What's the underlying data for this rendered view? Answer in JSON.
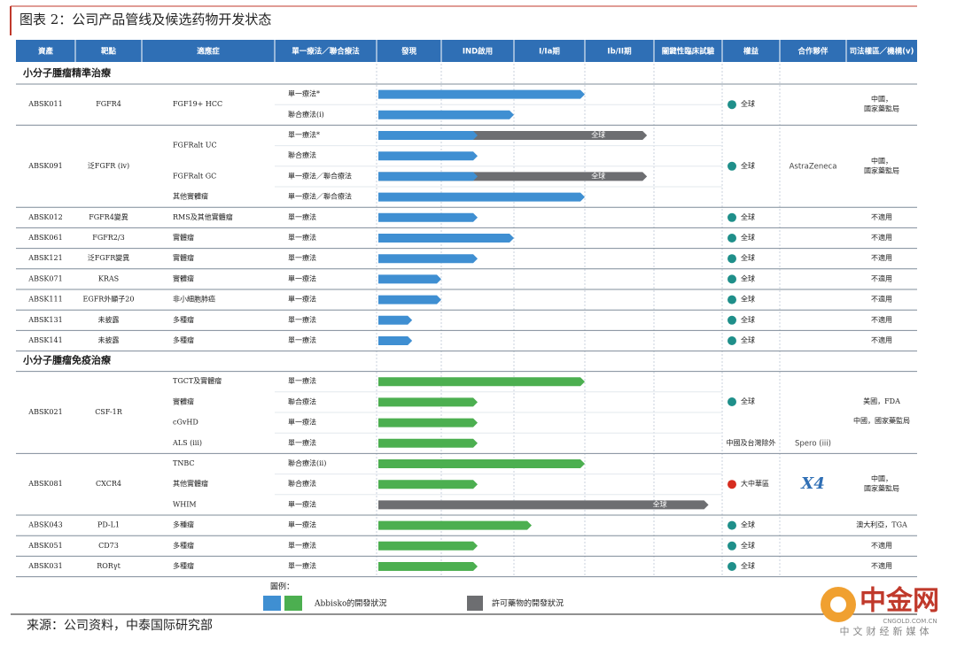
{
  "title": "图表 2：公司产品管线及候选药物开发状态",
  "header": [
    "資產",
    "靶點",
    "適應症",
    "單一療法／聯合療法",
    "發現",
    "IND啟用",
    "I/Ia期",
    "Ib/II期",
    "關鍵性臨床試驗",
    "權益",
    "合作夥伴",
    "司法權區／機構(v)"
  ],
  "stage_colors": {
    "own_precision": "#3f8fd2",
    "own_immuno": "#4caf50",
    "licensed": "#6d6e71"
  },
  "sections": [
    {
      "title": "小分子腫瘤精準治療",
      "bar_kind": "own_precision",
      "assets": [
        {
          "asset": "ABSK011",
          "target": "FGFR4",
          "rights": "全球",
          "rights_icon": "#1f8f8a",
          "partner": null,
          "jurisdiction": [
            "中國，",
            "國家藥監局"
          ],
          "rows": [
            {
              "indication": "FGF19+ HCC",
              "therapy": "單一療法*",
              "bars": [
                {
                  "stage": 3.0
                }
              ]
            },
            {
              "indication": null,
              "therapy": "聯合療法(i)",
              "bars": [
                {
                  "stage": 2.0
                }
              ]
            }
          ]
        },
        {
          "asset": "ABSK091",
          "target": "泛FGFR (iv)",
          "rights": "全球",
          "rights_icon": "#1f8f8a",
          "partner": "AstraZeneca",
          "jurisdiction": [
            "中國，",
            "國家藥監局"
          ],
          "rows": [
            {
              "indication": "FGFRalt UC",
              "therapy": "單一療法*",
              "bars": [
                {
                  "stage": 3.9,
                  "licensed": true,
                  "label": "全球"
                },
                {
                  "stage": 1.5
                }
              ]
            },
            {
              "indication": null,
              "therapy": "聯合療法",
              "bars": [
                {
                  "stage": 1.5
                }
              ]
            },
            {
              "indication": "FGFRalt GC",
              "therapy": "單一療法／聯合療法",
              "bars": [
                {
                  "stage": 3.9,
                  "licensed": true,
                  "label": "全球"
                },
                {
                  "stage": 1.5
                }
              ]
            },
            {
              "indication": "其他實體瘤",
              "therapy": "單一療法／聯合療法",
              "bars": [
                {
                  "stage": 3.0
                }
              ]
            }
          ]
        },
        {
          "asset": "ABSK012",
          "target": "FGFR4變異",
          "rights": "全球",
          "rights_icon": "#1f8f8a",
          "partner": null,
          "jurisdiction": [
            "不適用"
          ],
          "rows": [
            {
              "indication": "RMS及其他實體瘤",
              "therapy": "單一療法",
              "bars": [
                {
                  "stage": 1.5
                }
              ]
            }
          ]
        },
        {
          "asset": "ABSK061",
          "target": "FGFR2/3",
          "rights": "全球",
          "rights_icon": "#1f8f8a",
          "partner": null,
          "jurisdiction": [
            "不適用"
          ],
          "rows": [
            {
              "indication": "實體瘤",
              "therapy": "單一療法",
              "bars": [
                {
                  "stage": 2.0
                }
              ]
            }
          ]
        },
        {
          "asset": "ABSK121",
          "target": "泛FGFR變異",
          "rights": "全球",
          "rights_icon": "#1f8f8a",
          "partner": null,
          "jurisdiction": [
            "不適用"
          ],
          "rows": [
            {
              "indication": "實體瘤",
              "therapy": "單一療法",
              "bars": [
                {
                  "stage": 1.5
                }
              ]
            }
          ]
        },
        {
          "asset": "ABSK071",
          "target": "KRAS",
          "rights": "全球",
          "rights_icon": "#1f8f8a",
          "partner": null,
          "jurisdiction": [
            "不適用"
          ],
          "rows": [
            {
              "indication": "實體瘤",
              "therapy": "單一療法",
              "bars": [
                {
                  "stage": 1.0
                }
              ]
            }
          ]
        },
        {
          "asset": "ABSK111",
          "target": "EGFR外顯子20",
          "rights": "全球",
          "rights_icon": "#1f8f8a",
          "partner": null,
          "jurisdiction": [
            "不適用"
          ],
          "rows": [
            {
              "indication": "非小細胞肺癌",
              "therapy": "單一療法",
              "bars": [
                {
                  "stage": 1.0
                }
              ]
            }
          ]
        },
        {
          "asset": "ABSK131",
          "target": "未披露",
          "rights": "全球",
          "rights_icon": "#1f8f8a",
          "partner": null,
          "jurisdiction": [
            "不適用"
          ],
          "rows": [
            {
              "indication": "多種瘤",
              "therapy": "單一療法",
              "bars": [
                {
                  "stage": 0.55
                }
              ]
            }
          ]
        },
        {
          "asset": "ABSK141",
          "target": "未披露",
          "rights": "全球",
          "rights_icon": "#1f8f8a",
          "partner": null,
          "jurisdiction": [
            "不適用"
          ],
          "rows": [
            {
              "indication": "多種瘤",
              "therapy": "單一療法",
              "bars": [
                {
                  "stage": 0.55
                }
              ]
            }
          ]
        }
      ]
    },
    {
      "title": "小分子腫瘤免疫治療",
      "bar_kind": "own_immuno",
      "assets": [
        {
          "asset": "ABSK021",
          "target": "CSF-1R",
          "rights": "全球",
          "rights_note": "中國及台灣除外",
          "rights_icon": "#1f8f8a",
          "partner": "Spero (iii)",
          "jurisdiction": [
            "美國，FDA",
            "中國，國家藥監局"
          ],
          "rows": [
            {
              "indication": "TGCT及實體瘤",
              "therapy": "單一療法",
              "bars": [
                {
                  "stage": 3.0
                }
              ]
            },
            {
              "indication": "實體瘤",
              "therapy": "聯合療法",
              "bars": [
                {
                  "stage": 1.5
                }
              ]
            },
            {
              "indication": "cGvHD",
              "therapy": "單一療法",
              "bars": [
                {
                  "stage": 1.5
                }
              ]
            },
            {
              "indication": "ALS (iii)",
              "therapy": "單一療法",
              "bars": [
                {
                  "stage": 1.5
                }
              ]
            }
          ]
        },
        {
          "asset": "ABSK081",
          "target": "CXCR4",
          "rights": "大中華區",
          "rights_icon": "#d62d20",
          "partner": "X4",
          "jurisdiction": [
            "中國，",
            "國家藥監局"
          ],
          "rows": [
            {
              "indication": "TNBC",
              "therapy": "聯合療法(ii)",
              "bars": [
                {
                  "stage": 3.0
                }
              ]
            },
            {
              "indication": "其他實體瘤",
              "therapy": "聯合療法",
              "bars": [
                {
                  "stage": 1.5
                }
              ]
            },
            {
              "indication": "WHIM",
              "therapy": "單一療法",
              "bars": [
                {
                  "stage": 4.8,
                  "licensed": true,
                  "label": "全球"
                }
              ]
            }
          ]
        },
        {
          "asset": "ABSK043",
          "target": "PD-L1",
          "rights": "全球",
          "rights_icon": "#1f8f8a",
          "partner": null,
          "jurisdiction": [
            "澳大利亞，TGA"
          ],
          "rows": [
            {
              "indication": "多種瘤",
              "therapy": "單一療法",
              "bars": [
                {
                  "stage": 2.25
                }
              ]
            }
          ]
        },
        {
          "asset": "ABSK051",
          "target": "CD73",
          "rights": "全球",
          "rights_icon": "#1f8f8a",
          "partner": null,
          "jurisdiction": [
            "不適用"
          ],
          "rows": [
            {
              "indication": "多種瘤",
              "therapy": "單一療法",
              "bars": [
                {
                  "stage": 1.5
                }
              ]
            }
          ]
        },
        {
          "asset": "ABSK031",
          "target": "RORγt",
          "rights": "全球",
          "rights_icon": "#1f8f8a",
          "partner": null,
          "jurisdiction": [
            "不適用"
          ],
          "rows": [
            {
              "indication": "多種瘤",
              "therapy": "單一療法",
              "bars": [
                {
                  "stage": 1.5
                }
              ]
            }
          ]
        }
      ]
    }
  ],
  "legend": {
    "title": "圖例：",
    "own": "Abbisko的開發狀況",
    "licensed": "許可藥物的開發狀況"
  },
  "source": "来源：公司资料，中泰国际研究部",
  "watermark": {
    "brand": "中金网",
    "site": "CNGOLD.COM.CN",
    "tagline": "中文财经新媒体"
  }
}
